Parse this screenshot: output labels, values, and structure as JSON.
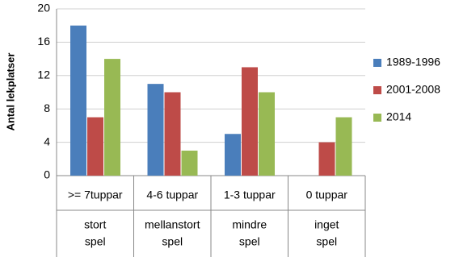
{
  "chart_data": {
    "type": "bar",
    "y_label": "Antal lekplatser",
    "categories": [
      ">= 7tuppar",
      "4-6 tuppar",
      "1-3 tuppar",
      "0 tuppar"
    ],
    "category_groups": [
      [
        "stort",
        "spel"
      ],
      [
        "mellanstort",
        "spel"
      ],
      [
        "mindre",
        "spel"
      ],
      [
        "inget",
        "spel"
      ]
    ],
    "series": [
      {
        "name": "1989-1996",
        "color": "#4a7ebb",
        "values": [
          18,
          11,
          5,
          0
        ]
      },
      {
        "name": "2001-2008",
        "color": "#be4b48",
        "values": [
          7,
          10,
          13,
          4
        ]
      },
      {
        "name": "2014",
        "color": "#98b954",
        "values": [
          14,
          3,
          10,
          7
        ]
      }
    ],
    "ylim": [
      0,
      20
    ],
    "yticks": [
      0,
      4,
      8,
      12,
      16,
      20
    ],
    "grid": true,
    "legend": "right"
  }
}
